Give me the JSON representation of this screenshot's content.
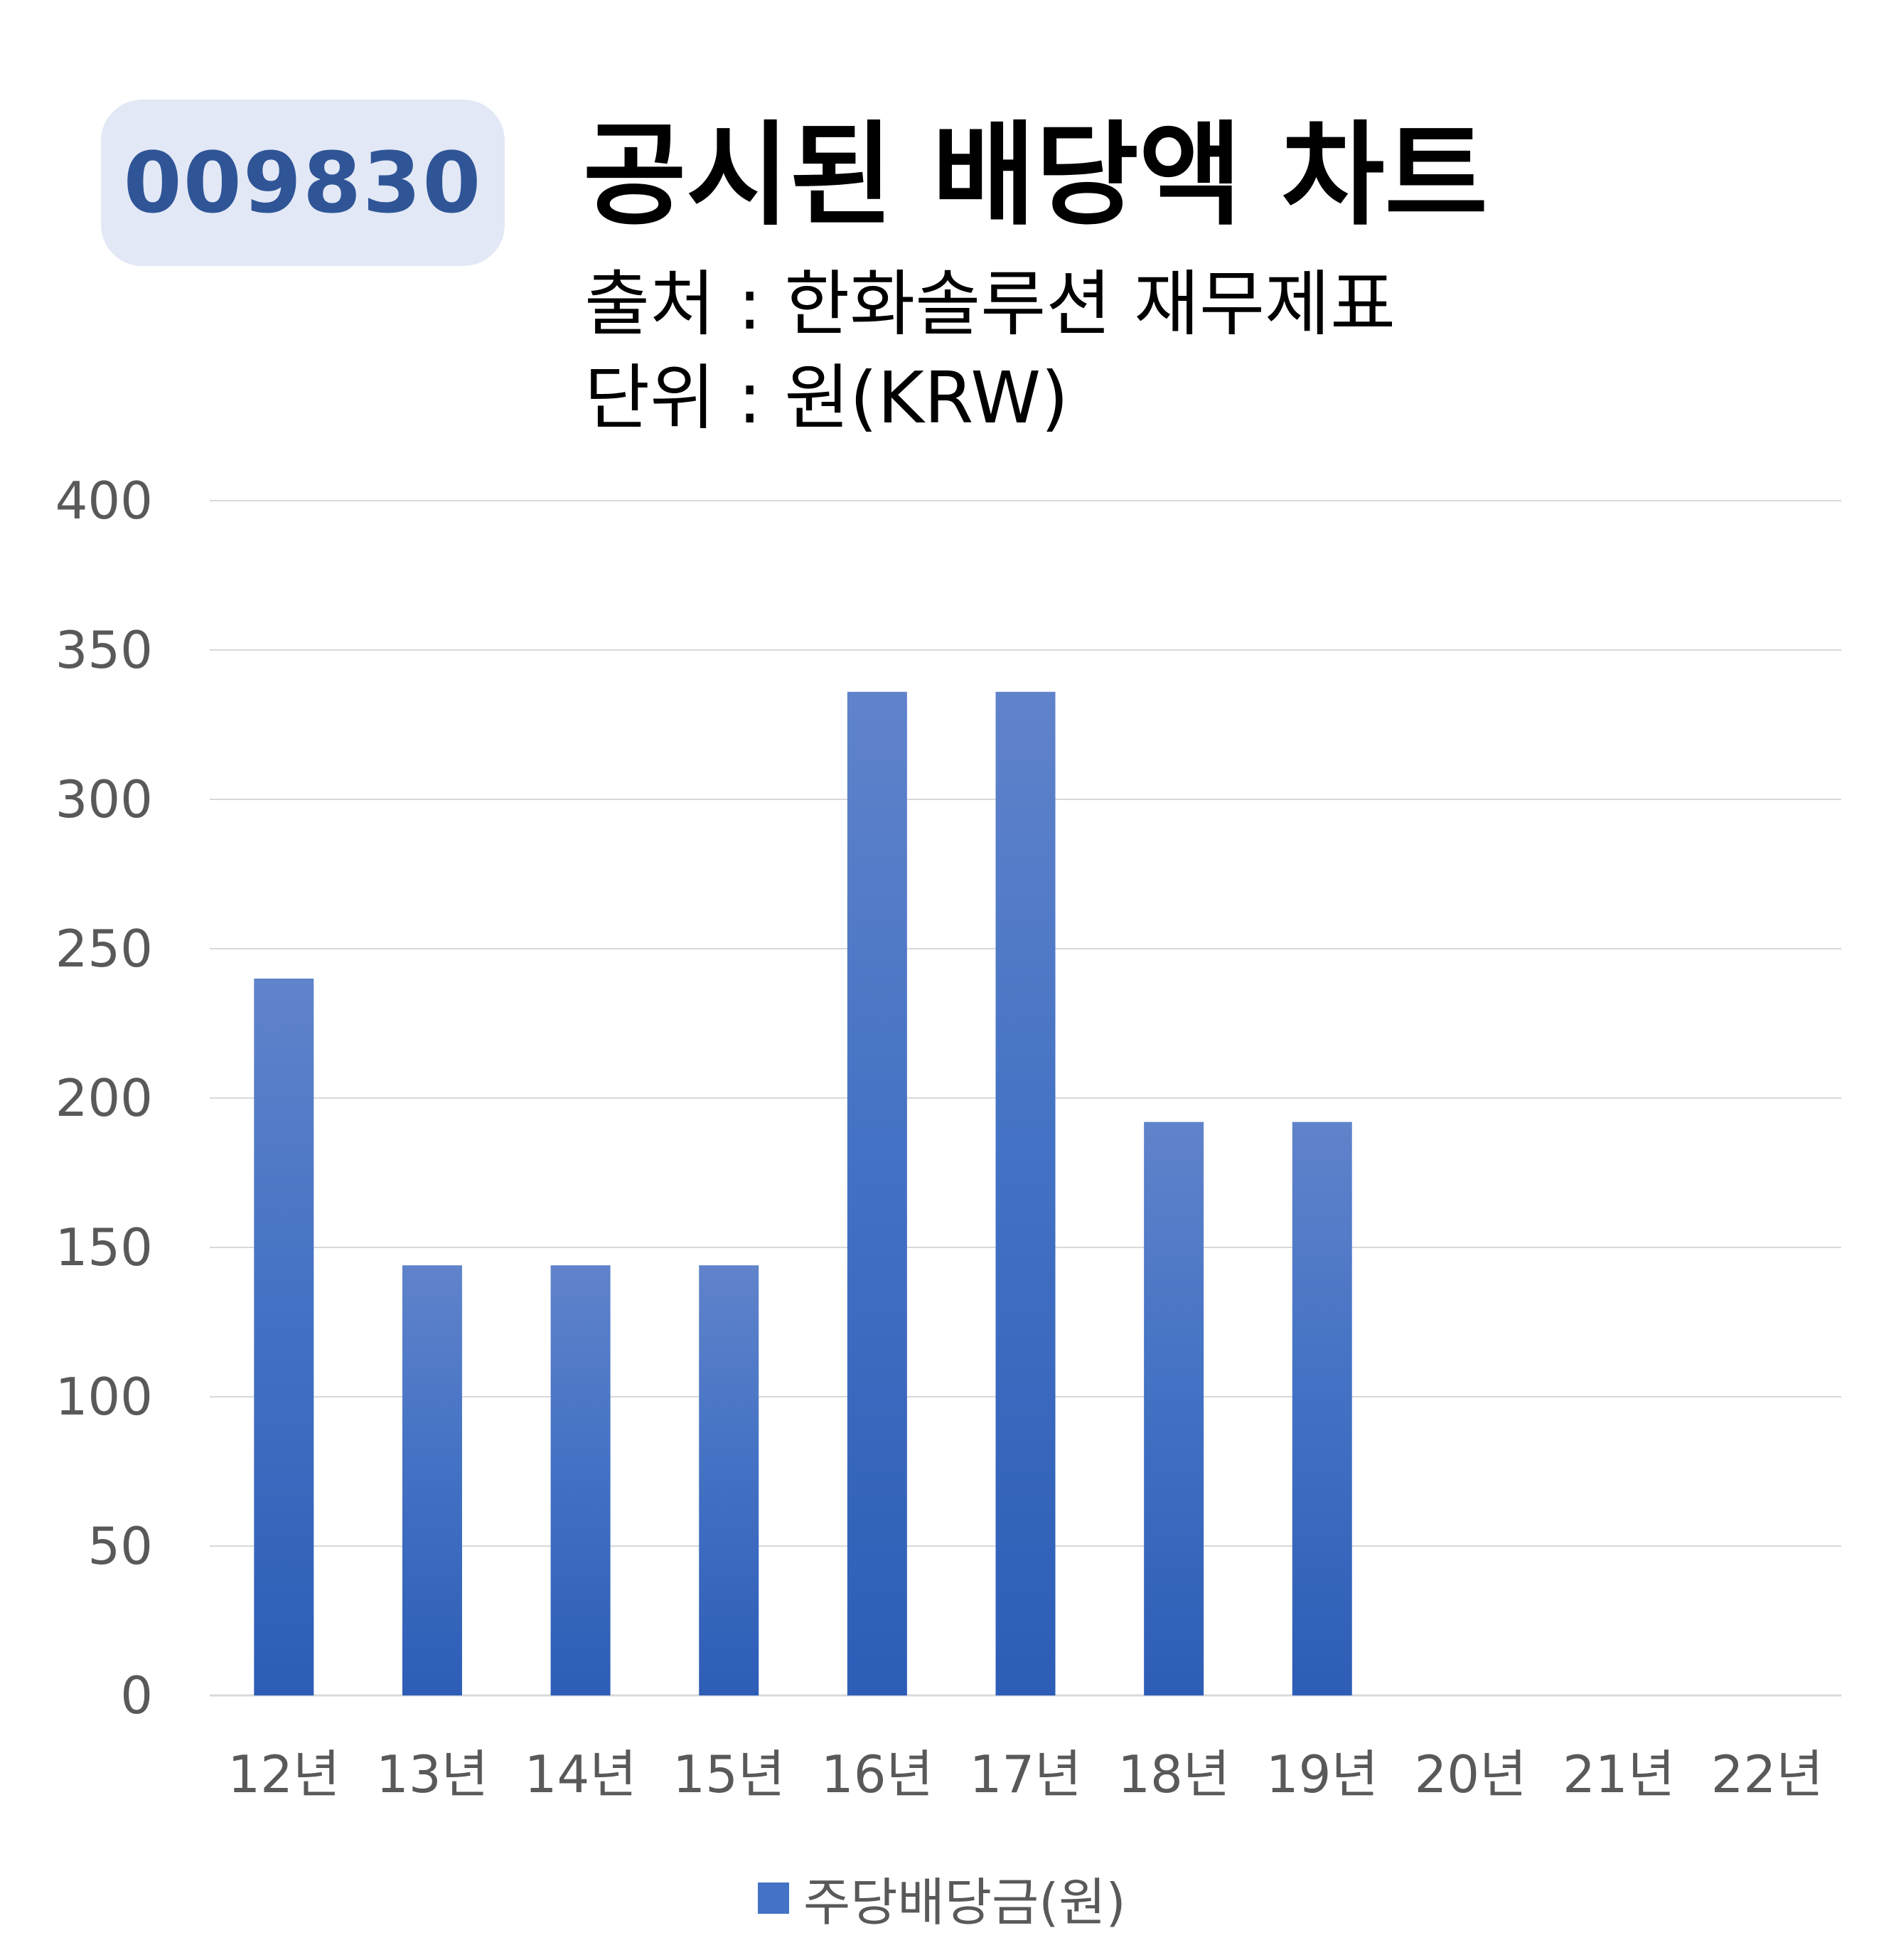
{
  "header": {
    "ticker": "009830",
    "title": "공시된 배당액 차트",
    "source": "출처 : 한화솔루션 재무제표",
    "unit": "단위 : 원(KRW)"
  },
  "colors": {
    "badge_bg": "#e2e8f5",
    "badge_text": "#2f5597",
    "bar_top": "#6083cb",
    "bar_mid": "#4472c4",
    "bar_bottom": "#2d5db6",
    "grid": "#d9d9d9",
    "tick_text": "#595959"
  },
  "chart_data": {
    "type": "bar",
    "categories": [
      "12년",
      "13년",
      "14년",
      "15년",
      "16년",
      "17년",
      "18년",
      "19년",
      "20년",
      "21년",
      "22년"
    ],
    "series": [
      {
        "name": "주당배당금(원)",
        "values": [
          240,
          144,
          144,
          144,
          336,
          336,
          192,
          192,
          null,
          null,
          null
        ]
      }
    ],
    "ylim": [
      0,
      400
    ],
    "yticks": [
      0,
      50,
      100,
      150,
      200,
      250,
      300,
      350,
      400
    ],
    "grid": true,
    "legend": "bottom"
  }
}
